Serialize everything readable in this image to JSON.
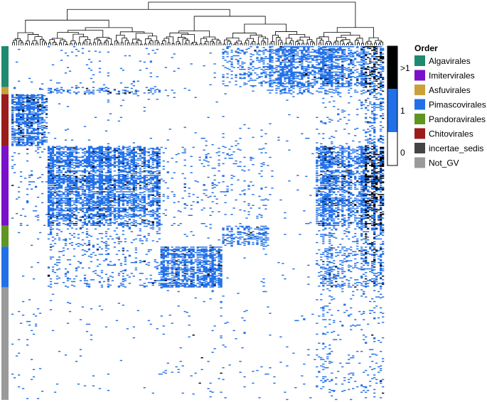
{
  "chart_data": {
    "type": "heatmap",
    "title": "",
    "xlabel": "",
    "ylabel": "",
    "color_scale": {
      "tick_labels": [
        ">1",
        "1",
        "0"
      ],
      "levels": [
        {
          "label": ">1",
          "value": 2,
          "color": "#000000"
        },
        {
          "label": "1",
          "value": 1,
          "color": "#2270e8"
        },
        {
          "label": "0",
          "value": 0,
          "color": "#ffffff"
        }
      ]
    },
    "row_annotation": {
      "title": "Order",
      "legend_position": "right",
      "groups": [
        {
          "name": "Algavirales",
          "color": "#1f8a70",
          "row_count": 45
        },
        {
          "name": "Asfuvirales",
          "color": "#c9a13b",
          "row_count": 8
        },
        {
          "name": "Chitovirales",
          "color": "#9b1b1b",
          "row_count": 57
        },
        {
          "name": "Imitervirales",
          "color": "#7a10c9",
          "row_count": 88
        },
        {
          "name": "Pandoravirales",
          "color": "#5e9620",
          "row_count": 23
        },
        {
          "name": "Pimascovirales",
          "color": "#2270e8",
          "row_count": 45
        },
        {
          "name": "Not_GV",
          "color": "#9a9a9a",
          "row_count": 124
        }
      ],
      "legend_entries": [
        {
          "name": "Algavirales",
          "color": "#1f8a70"
        },
        {
          "name": "Imitervirales",
          "color": "#7a10c9"
        },
        {
          "name": "Asfuvirales",
          "color": "#c9a13b"
        },
        {
          "name": "Pimascovirales",
          "color": "#2270e8"
        },
        {
          "name": "Pandoravirales",
          "color": "#5e9620"
        },
        {
          "name": "Chitovirales",
          "color": "#9b1b1b"
        },
        {
          "name": "incertae_sedis",
          "color": "#444444"
        },
        {
          "name": "Not_GV",
          "color": "#9a9a9a"
        }
      ]
    },
    "column_dendrogram": true,
    "n_columns": 175,
    "column_clusters": [
      {
        "name": "c1",
        "columns": 17
      },
      {
        "name": "c2",
        "columns": 53
      },
      {
        "name": "c3",
        "columns": 29
      },
      {
        "name": "c4",
        "columns": 22
      },
      {
        "name": "c5",
        "columns": 22
      },
      {
        "name": "c6",
        "columns": 23
      },
      {
        "name": "c7",
        "columns": 9
      }
    ],
    "blocks": [
      {
        "group": "Algavirales",
        "cluster": "c5",
        "density": 0.65,
        "black": 0.02
      },
      {
        "group": "Algavirales",
        "cluster": "c6",
        "density": 0.7,
        "black": 0.03
      },
      {
        "group": "Algavirales",
        "cluster": "c7",
        "density": 0.6,
        "black": 0.5
      },
      {
        "group": "Algavirales",
        "cluster": "c4",
        "density": 0.25,
        "black": 0.01
      },
      {
        "group": "Algavirales",
        "cluster": "c2",
        "density": 0.03,
        "black": 0.0
      },
      {
        "group": "Asfuvirales",
        "cluster": "c2",
        "density": 0.25,
        "black": 0.1
      },
      {
        "group": "Asfuvirales",
        "cluster": "c5",
        "density": 0.3,
        "black": 0.0
      },
      {
        "group": "Asfuvirales",
        "cluster": "c6",
        "density": 0.2,
        "black": 0.0
      },
      {
        "group": "Asfuvirales",
        "cluster": "c7",
        "density": 0.4,
        "black": 0.2
      },
      {
        "group": "Chitovirales",
        "cluster": "c1",
        "density": 0.7,
        "black": 0.08
      },
      {
        "group": "Chitovirales",
        "cluster": "c7",
        "density": 0.3,
        "black": 0.05
      },
      {
        "group": "Chitovirales",
        "cluster": "c6",
        "density": 0.06,
        "black": 0.0
      },
      {
        "group": "Imitervirales",
        "cluster": "c2",
        "density": 0.72,
        "black": 0.05
      },
      {
        "group": "Imitervirales",
        "cluster": "c6",
        "density": 0.65,
        "black": 0.05
      },
      {
        "group": "Imitervirales",
        "cluster": "c7",
        "density": 0.72,
        "black": 0.45
      },
      {
        "group": "Imitervirales",
        "cluster": "c4",
        "density": 0.06,
        "black": 0.01
      },
      {
        "group": "Imitervirales",
        "cluster": "c3",
        "density": 0.05,
        "black": 0.01
      },
      {
        "group": "Imitervirales",
        "cluster": "c1",
        "density": 0.05,
        "black": 0.02
      },
      {
        "group": "Pandoravirales",
        "cluster": "c4",
        "density": 0.5,
        "black": 0.02
      },
      {
        "group": "Pandoravirales",
        "cluster": "c2",
        "density": 0.15,
        "black": 0.02
      },
      {
        "group": "Pandoravirales",
        "cluster": "c6",
        "density": 0.2,
        "black": 0.0
      },
      {
        "group": "Pandoravirales",
        "cluster": "c7",
        "density": 0.45,
        "black": 0.2
      },
      {
        "group": "Pimascovirales",
        "cluster": "c3",
        "density": 0.68,
        "black": 0.03
      },
      {
        "group": "Pimascovirales",
        "cluster": "c2",
        "density": 0.12,
        "black": 0.02
      },
      {
        "group": "Pimascovirales",
        "cluster": "c6",
        "density": 0.3,
        "black": 0.02
      },
      {
        "group": "Pimascovirales",
        "cluster": "c7",
        "density": 0.4,
        "black": 0.15
      },
      {
        "group": "Not_GV",
        "cluster": "c6",
        "density": 0.07,
        "black": 0.0
      },
      {
        "group": "Not_GV",
        "cluster": "c7",
        "density": 0.1,
        "black": 0.05
      },
      {
        "group": "Not_GV",
        "cluster": "c1",
        "density": 0.02,
        "black": 0.0
      },
      {
        "group": "Not_GV",
        "cluster": "c3",
        "density": 0.02,
        "black": 0.05
      },
      {
        "group": "Not_GV",
        "cluster": "c2",
        "density": 0.01,
        "black": 0.0
      }
    ],
    "background_density": 0.012
  }
}
